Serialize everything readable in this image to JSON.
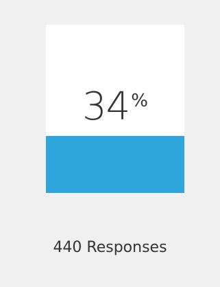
{
  "stat": {
    "value": "34",
    "unit": "%",
    "fill_fraction": 0.34,
    "fill_color": "#2ea5dd"
  },
  "responses_label": "440 Responses"
}
